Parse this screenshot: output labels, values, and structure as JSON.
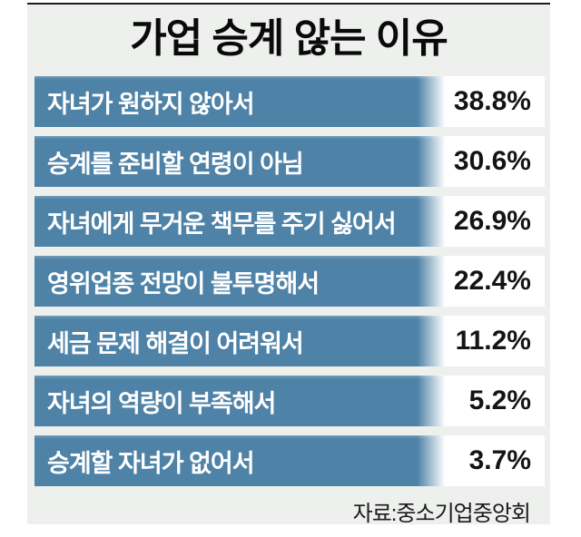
{
  "colors": {
    "bar": "#4e82a6",
    "panel_background": "#eef0ee",
    "top_rule": "#1c1c1c",
    "value_text": "#141414",
    "label_text": "#ffffff"
  },
  "chart_data": {
    "type": "bar",
    "orientation": "horizontal",
    "title": "가업 승계 않는 이유",
    "unit": "%",
    "categories": [
      "자녀가 원하지 않아서",
      "승계를 준비할 연령이 아님",
      "자녀에게 무거운 책무를 주기 싫어서",
      "영위업종 전망이 불투명해서",
      "세금 문제 해결이 어려워서",
      "자녀의 역량이 부족해서",
      "승계할 자녀가 없어서"
    ],
    "values": [
      38.8,
      30.6,
      26.9,
      22.4,
      11.2,
      5.2,
      3.7
    ],
    "value_labels": [
      "38.8%",
      "30.6%",
      "26.9%",
      "22.4%",
      "11.2%",
      "5.2%",
      "3.7%"
    ],
    "source": "자료:중소기업중앙회",
    "legend": false,
    "grid": false,
    "xlim": [
      0,
      100
    ],
    "note": "equal-width label bars (infographic style), values printed at right"
  }
}
